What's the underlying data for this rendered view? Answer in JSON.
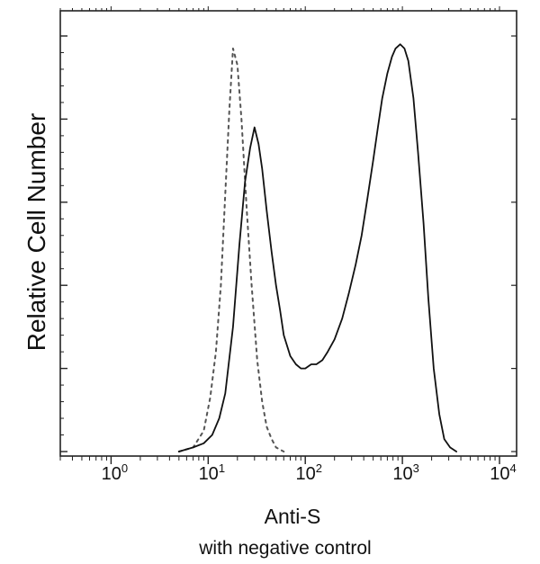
{
  "chart_data": {
    "type": "line",
    "title": "",
    "xlabel": "Anti-S",
    "ylabel": "Relative Cell Number",
    "caption": "with negative control",
    "x_scale": "log",
    "xlim": [
      0.3,
      15000
    ],
    "ylim": [
      0,
      100
    ],
    "x_ticks": [
      {
        "value": 1,
        "base": "10",
        "exp": "0"
      },
      {
        "value": 10,
        "base": "10",
        "exp": "1"
      },
      {
        "value": 100,
        "base": "10",
        "exp": "2"
      },
      {
        "value": 1000,
        "base": "10",
        "exp": "3"
      },
      {
        "value": 10000,
        "base": "10",
        "exp": "4"
      }
    ],
    "y_ticks_labeled": false,
    "grid": false,
    "legend": "none",
    "series": [
      {
        "style": "dashed",
        "color": "#555555",
        "x": [
          5,
          7,
          9,
          10.5,
          12,
          13.5,
          15,
          16.5,
          18,
          20,
          22,
          25,
          28,
          32,
          36,
          40,
          45,
          50,
          60
        ],
        "y": [
          0,
          1,
          5,
          13,
          24,
          40,
          62,
          82,
          97,
          93,
          80,
          58,
          40,
          22,
          12,
          6,
          3,
          1,
          0
        ]
      },
      {
        "style": "solid",
        "color": "#111111",
        "x": [
          5,
          7,
          9,
          11,
          13,
          15,
          18,
          21,
          24,
          27,
          30,
          33,
          36,
          40,
          45,
          50,
          55,
          60,
          70,
          80,
          90,
          100,
          115,
          130,
          150,
          170,
          200,
          240,
          280,
          330,
          380,
          430,
          500,
          560,
          620,
          700,
          780,
          850,
          950,
          1050,
          1150,
          1300,
          1450,
          1650,
          1850,
          2100,
          2400,
          2700,
          3100,
          3600
        ],
        "y": [
          0,
          1,
          2,
          4,
          8,
          14,
          30,
          50,
          65,
          73,
          78,
          74,
          68,
          58,
          48,
          40,
          34,
          28,
          23,
          21,
          20,
          20,
          21,
          21,
          22,
          24,
          27,
          32,
          38,
          45,
          52,
          60,
          70,
          78,
          85,
          91,
          95,
          97,
          98,
          97,
          94,
          85,
          72,
          55,
          37,
          20,
          9,
          3,
          1,
          0
        ]
      }
    ]
  }
}
